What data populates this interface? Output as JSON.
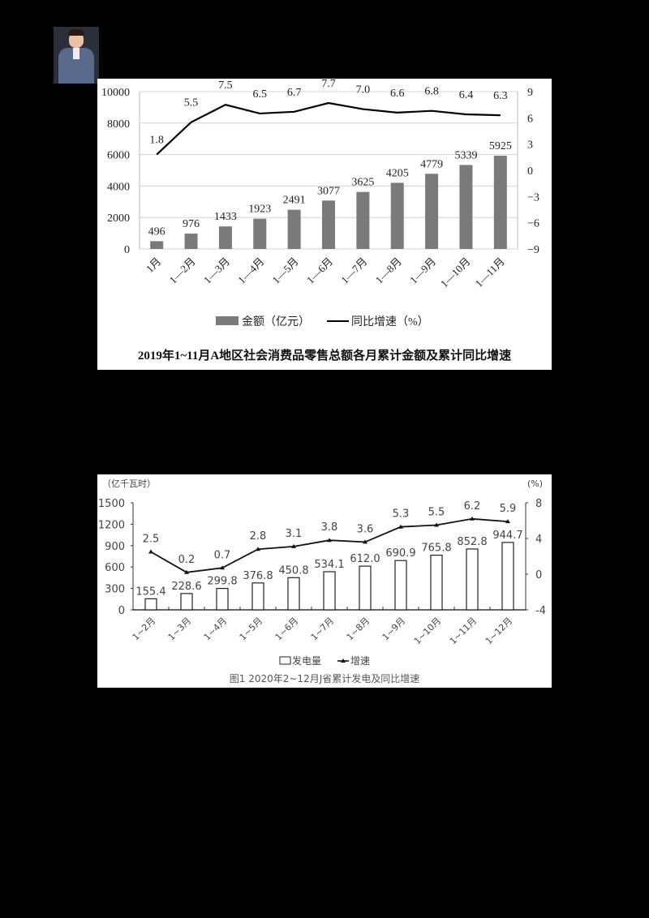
{
  "photo": {
    "label": "presenter portrait"
  },
  "chart_data": [
    {
      "type": "bar+line",
      "title": "2019年1~11月A地区社会消费品零售总额各月累计金额及累计同比增速",
      "categories": [
        "1月",
        "1—2月",
        "1—3月",
        "1—4月",
        "1—5月",
        "1—6月",
        "1—7月",
        "1—8月",
        "1—9月",
        "1—10月",
        "1—11月"
      ],
      "series": [
        {
          "name": "金额（亿元）",
          "type": "bar",
          "axis": "left",
          "color": "#7a7a7a",
          "values": [
            496,
            976,
            1433,
            1923,
            2491,
            3077,
            3625,
            4205,
            4779,
            5339,
            5925
          ]
        },
        {
          "name": "同比增速（%）",
          "type": "line",
          "axis": "right",
          "color": "#000000",
          "values": [
            1.8,
            5.5,
            7.5,
            6.5,
            6.7,
            7.7,
            7.0,
            6.6,
            6.8,
            6.4,
            6.3
          ]
        }
      ],
      "ylabel": "",
      "ylim": [
        0,
        10000
      ],
      "yticks": [
        0,
        2000,
        4000,
        6000,
        8000,
        10000
      ],
      "y2label": "",
      "y2lim": [
        -9,
        9
      ],
      "y2ticks": [
        -9,
        -6,
        -3,
        0,
        3,
        6,
        9
      ],
      "grid": true,
      "legend_position": "bottom"
    },
    {
      "type": "bar+line",
      "title": "图1  2020年2~12月J省累计发电及同比增速",
      "categories": [
        "1~2月",
        "1~3月",
        "1~4月",
        "1~5月",
        "1~6月",
        "1~7月",
        "1~8月",
        "1~9月",
        "1~10月",
        "1~11月",
        "1~12月"
      ],
      "series": [
        {
          "name": "发电量",
          "type": "bar",
          "axis": "left",
          "color": "#ffffff",
          "values": [
            155.4,
            228.6,
            299.8,
            376.8,
            450.8,
            534.1,
            612.0,
            690.9,
            765.8,
            852.8,
            944.7
          ],
          "labels": [
            "155.4",
            "228.6",
            "299.8",
            "376.8",
            "450.8",
            "534.1",
            "612.0",
            "690.9",
            "765.8",
            "852.8",
            "944.7"
          ]
        },
        {
          "name": "增速",
          "type": "line",
          "axis": "right",
          "color": "#000000",
          "values": [
            2.5,
            0.2,
            0.7,
            2.8,
            3.1,
            3.8,
            3.6,
            5.3,
            5.5,
            6.2,
            5.9
          ]
        }
      ],
      "ylabel": "（亿千瓦时）",
      "ylim": [
        0,
        1500
      ],
      "yticks": [
        0,
        300,
        600,
        900,
        1200,
        1500
      ],
      "y2label": "(%)",
      "y2lim": [
        -4,
        8
      ],
      "y2ticks": [
        -4,
        0,
        4,
        8
      ],
      "grid": false,
      "legend_position": "bottom"
    }
  ]
}
